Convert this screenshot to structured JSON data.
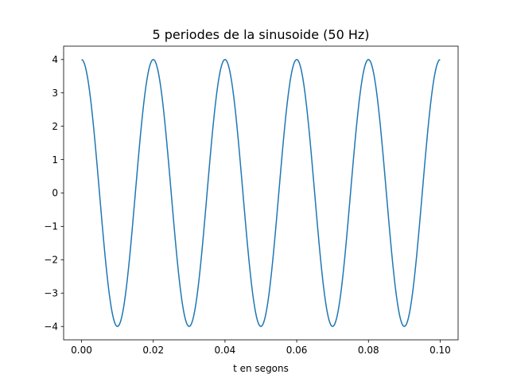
{
  "chart_data": {
    "type": "line",
    "title": "5 periodes de la sinusoide (50 Hz)",
    "xlabel": "t en segons",
    "ylabel": "",
    "xlim": [
      -0.005,
      0.105
    ],
    "ylim": [
      -4.4,
      4.4
    ],
    "x_ticks": [
      0.0,
      0.02,
      0.04,
      0.06,
      0.08,
      0.1
    ],
    "x_tick_labels": [
      "0.00",
      "0.02",
      "0.04",
      "0.06",
      "0.08",
      "0.10"
    ],
    "y_ticks": [
      -4,
      -3,
      -2,
      -1,
      0,
      1,
      2,
      3,
      4
    ],
    "y_tick_labels": [
      "−4",
      "−3",
      "−2",
      "−1",
      "0",
      "1",
      "2",
      "3",
      "4"
    ],
    "grid": false,
    "series": [
      {
        "name": "",
        "color": "#1f77b4",
        "x": [
          0.0,
          0.0025,
          0.005,
          0.0075,
          0.01,
          0.0125,
          0.015,
          0.0175,
          0.02,
          0.0225,
          0.025,
          0.0275,
          0.03,
          0.0325,
          0.035,
          0.0375,
          0.04,
          0.0425,
          0.045,
          0.0475,
          0.05,
          0.0525,
          0.055,
          0.0575,
          0.06,
          0.0625,
          0.065,
          0.0675,
          0.07,
          0.0725,
          0.075,
          0.0775,
          0.08,
          0.0825,
          0.085,
          0.0875,
          0.09,
          0.0925,
          0.095,
          0.0975,
          0.1
        ],
        "y": [
          4.0,
          2.83,
          0.0,
          -2.83,
          -4.0,
          -2.83,
          0.0,
          2.83,
          4.0,
          2.83,
          0.0,
          -2.83,
          -4.0,
          -2.83,
          0.0,
          2.83,
          4.0,
          2.83,
          0.0,
          -2.83,
          -4.0,
          -2.83,
          0.0,
          2.83,
          4.0,
          2.83,
          0.0,
          -2.83,
          -4.0,
          -2.83,
          0.0,
          2.83,
          4.0,
          2.83,
          0.0,
          -2.83,
          -4.0,
          -2.83,
          0.0,
          2.83,
          4.0
        ]
      }
    ]
  }
}
